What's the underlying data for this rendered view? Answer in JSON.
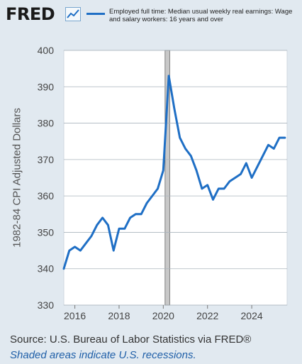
{
  "header": {
    "logo_text": "FRED",
    "logo_icon": "chart-line-icon",
    "legend_label": "Employed full time: Median usual weekly real earnings: Wage and salary workers: 16 years and over"
  },
  "footer": {
    "source": "Source: U.S. Bureau of Labor Statistics via FRED®",
    "note": "Shaded areas indicate U.S. recessions."
  },
  "colors": {
    "line": "#1f6fc5",
    "background": "#e1e9f0",
    "plot": "#ffffff",
    "recession": "#c8c8c8"
  },
  "chart_data": {
    "type": "line",
    "title": "",
    "xlabel": "",
    "ylabel": "1982-84 CPI Adjusted Dollars",
    "ylim": [
      330,
      400
    ],
    "xlim": [
      2015.5,
      2025.6
    ],
    "yticks": [
      330,
      340,
      350,
      360,
      370,
      380,
      390,
      400
    ],
    "xticks": [
      2016,
      2018,
      2020,
      2022,
      2024
    ],
    "xtick_labels": [
      "2016",
      "2018",
      "2020",
      "2022",
      "2024"
    ],
    "grid": true,
    "recessions": [
      [
        2020.08,
        2020.29
      ]
    ],
    "series": [
      {
        "x": [
          2015.5,
          2015.75,
          2016.0,
          2016.25,
          2016.5,
          2016.75,
          2017.0,
          2017.25,
          2017.5,
          2017.75,
          2018.0,
          2018.25,
          2018.5,
          2018.75,
          2019.0,
          2019.25,
          2019.5,
          2019.75,
          2020.0,
          2020.25,
          2020.5,
          2020.75,
          2021.0,
          2021.25,
          2021.5,
          2021.75,
          2022.0,
          2022.25,
          2022.5,
          2022.75,
          2023.0,
          2023.25,
          2023.5,
          2023.75,
          2024.0,
          2024.25,
          2024.5,
          2024.75,
          2025.0,
          2025.25,
          2025.5
        ],
        "values": [
          340,
          345,
          346,
          345,
          347,
          349,
          352,
          354,
          352,
          345,
          351,
          351,
          354,
          355,
          355,
          358,
          360,
          362,
          367,
          393,
          384,
          376,
          373,
          371,
          367,
          362,
          363,
          359,
          362,
          362,
          364,
          365,
          366,
          369,
          365,
          368,
          371,
          374,
          373,
          376,
          376
        ]
      }
    ]
  }
}
